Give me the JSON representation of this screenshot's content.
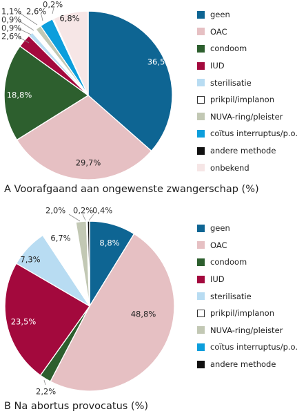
{
  "chart_data": [
    {
      "type": "pie",
      "title": "A  Voorafgaand aan ongewenste zwangerschap (%)",
      "categories": [
        "geen",
        "OAC",
        "condoom",
        "IUD",
        "sterilisatie",
        "prikpil/implanon",
        "NUVA-ring/pleister",
        "coïtus interruptus/p.o.",
        "andere methode",
        "onbekend"
      ],
      "values": [
        36.5,
        29.7,
        18.8,
        2.6,
        0.9,
        0.9,
        1.1,
        2.6,
        0.2,
        6.8
      ],
      "labels": [
        "36,5%",
        "29,7%",
        "18,8%",
        "2,6%",
        "0,9%",
        "0,9%",
        "1,1%",
        "2,6%",
        "0,2%",
        "6,8%"
      ],
      "colors": [
        "#0e6593",
        "#e6c0c3",
        "#2d5f2e",
        "#a3093d",
        "#b8dcf2",
        "#ffffff",
        "#c2c8b4",
        "#0c9edc",
        "#111111",
        "#f6e6e6"
      ],
      "legend_position": "right"
    },
    {
      "type": "pie",
      "title": "B  Na abortus provocatus (%)",
      "categories": [
        "geen",
        "OAC",
        "condoom",
        "IUD",
        "sterilisatie",
        "prikpil/implanon",
        "NUVA-ring/pleister",
        "coïtus interruptus/p.o.",
        "andere methode"
      ],
      "values": [
        8.8,
        48.8,
        2.2,
        23.5,
        7.3,
        6.7,
        2.0,
        0.2,
        0.4
      ],
      "labels": [
        "8,8%",
        "48,8%",
        "2,2%",
        "23,5%",
        "7,3%",
        "6,7%",
        "2,0%",
        "0,2%",
        "0,4%"
      ],
      "colors": [
        "#0e6593",
        "#e6c0c3",
        "#2d5f2e",
        "#a3093d",
        "#b8dcf2",
        "#ffffff",
        "#c2c8b4",
        "#0c9edc",
        "#111111"
      ],
      "legend_position": "right"
    }
  ]
}
